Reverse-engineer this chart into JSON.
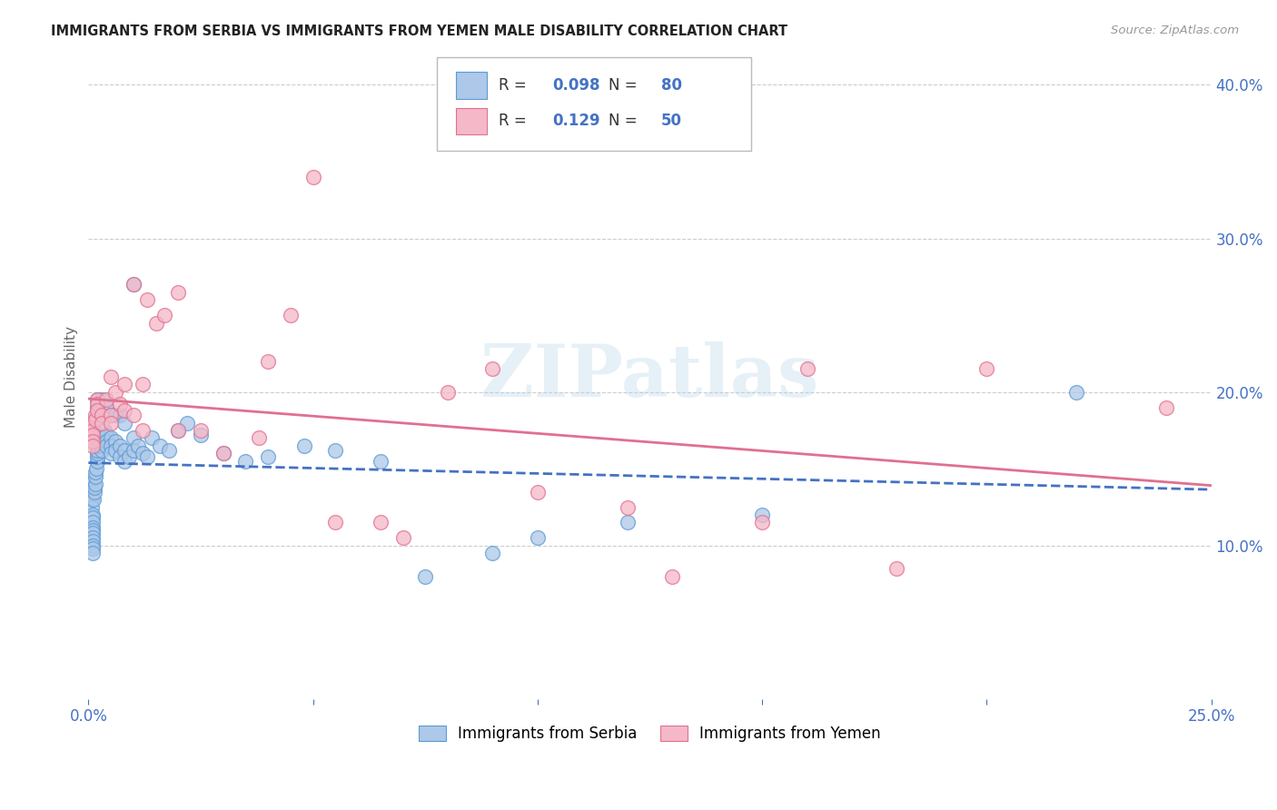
{
  "title": "IMMIGRANTS FROM SERBIA VS IMMIGRANTS FROM YEMEN MALE DISABILITY CORRELATION CHART",
  "source": "Source: ZipAtlas.com",
  "ylabel": "Male Disability",
  "serbia_R": 0.098,
  "serbia_N": 80,
  "yemen_R": 0.129,
  "yemen_N": 50,
  "serbia_color": "#adc8e8",
  "serbia_edge_color": "#5b9bd5",
  "yemen_color": "#f4b8c8",
  "yemen_edge_color": "#e07090",
  "serbia_line_color": "#4472c4",
  "yemen_line_color": "#e07090",
  "xlim": [
    0.0,
    0.25
  ],
  "ylim": [
    0.0,
    0.42
  ],
  "watermark": "ZIPatlas",
  "background_color": "#ffffff",
  "grid_color": "#cccccc",
  "serbia_x": [
    0.0004,
    0.0005,
    0.0006,
    0.0007,
    0.0008,
    0.0009,
    0.001,
    0.001,
    0.001,
    0.001,
    0.001,
    0.001,
    0.001,
    0.001,
    0.001,
    0.001,
    0.0012,
    0.0013,
    0.0014,
    0.0015,
    0.0015,
    0.0016,
    0.0018,
    0.002,
    0.002,
    0.002,
    0.002,
    0.002,
    0.0022,
    0.0025,
    0.003,
    0.003,
    0.003,
    0.003,
    0.0035,
    0.004,
    0.004,
    0.004,
    0.005,
    0.005,
    0.005,
    0.006,
    0.006,
    0.007,
    0.007,
    0.008,
    0.008,
    0.009,
    0.01,
    0.01,
    0.011,
    0.012,
    0.013,
    0.014,
    0.016,
    0.018,
    0.02,
    0.022,
    0.025,
    0.03,
    0.035,
    0.04,
    0.048,
    0.055,
    0.065,
    0.075,
    0.09,
    0.1,
    0.12,
    0.15,
    0.002,
    0.002,
    0.003,
    0.004,
    0.005,
    0.006,
    0.007,
    0.008,
    0.01,
    0.22
  ],
  "serbia_y": [
    0.14,
    0.135,
    0.13,
    0.13,
    0.125,
    0.12,
    0.118,
    0.115,
    0.112,
    0.11,
    0.108,
    0.105,
    0.103,
    0.1,
    0.098,
    0.095,
    0.13,
    0.135,
    0.138,
    0.14,
    0.145,
    0.148,
    0.15,
    0.155,
    0.158,
    0.16,
    0.162,
    0.165,
    0.168,
    0.17,
    0.17,
    0.168,
    0.165,
    0.162,
    0.175,
    0.172,
    0.168,
    0.165,
    0.17,
    0.165,
    0.16,
    0.168,
    0.162,
    0.165,
    0.158,
    0.162,
    0.155,
    0.158,
    0.17,
    0.162,
    0.165,
    0.16,
    0.158,
    0.17,
    0.165,
    0.162,
    0.175,
    0.18,
    0.172,
    0.16,
    0.155,
    0.158,
    0.165,
    0.162,
    0.155,
    0.08,
    0.095,
    0.105,
    0.115,
    0.12,
    0.19,
    0.195,
    0.195,
    0.19,
    0.185,
    0.185,
    0.185,
    0.18,
    0.27,
    0.2
  ],
  "yemen_x": [
    0.0005,
    0.0007,
    0.001,
    0.001,
    0.001,
    0.001,
    0.001,
    0.0015,
    0.0015,
    0.002,
    0.002,
    0.002,
    0.003,
    0.003,
    0.004,
    0.005,
    0.005,
    0.006,
    0.007,
    0.008,
    0.01,
    0.01,
    0.012,
    0.013,
    0.015,
    0.017,
    0.02,
    0.025,
    0.03,
    0.038,
    0.04,
    0.045,
    0.05,
    0.055,
    0.065,
    0.07,
    0.08,
    0.09,
    0.1,
    0.12,
    0.13,
    0.15,
    0.16,
    0.18,
    0.2,
    0.005,
    0.008,
    0.012,
    0.02,
    0.24
  ],
  "yemen_y": [
    0.17,
    0.168,
    0.18,
    0.175,
    0.172,
    0.168,
    0.165,
    0.185,
    0.182,
    0.195,
    0.192,
    0.188,
    0.185,
    0.18,
    0.195,
    0.185,
    0.18,
    0.2,
    0.192,
    0.188,
    0.185,
    0.27,
    0.175,
    0.26,
    0.245,
    0.25,
    0.265,
    0.175,
    0.16,
    0.17,
    0.22,
    0.25,
    0.34,
    0.115,
    0.115,
    0.105,
    0.2,
    0.215,
    0.135,
    0.125,
    0.08,
    0.115,
    0.215,
    0.085,
    0.215,
    0.21,
    0.205,
    0.205,
    0.175,
    0.19
  ]
}
